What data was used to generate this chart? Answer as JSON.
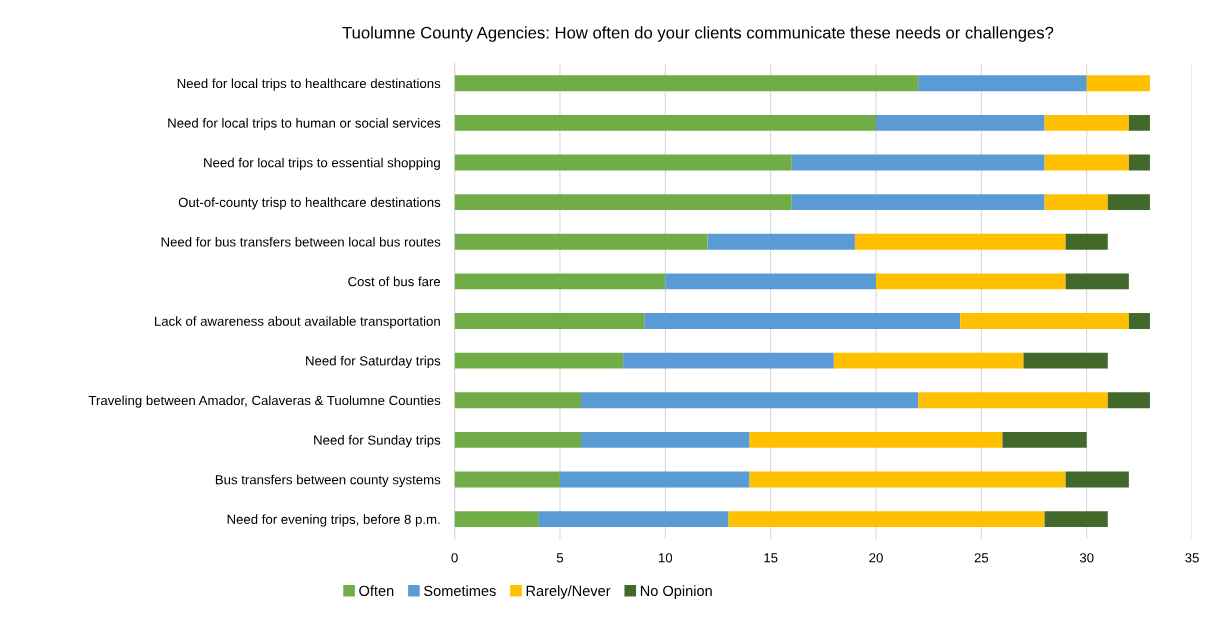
{
  "chart_data": {
    "type": "bar",
    "orientation": "horizontal",
    "stacked": true,
    "title": "Tuolumne County Agencies: How often do your clients communicate these needs or challenges?",
    "categories": [
      "Need for local trips to healthcare destinations",
      "Need for local trips to human or social services",
      "Need for local trips to essential shopping",
      "Out-of-county trisp to healthcare destinations",
      "Need for bus transfers between local bus routes",
      "Cost of bus fare",
      "Lack of awareness about available transportation",
      "Need for Saturday trips",
      "Traveling between Amador, Calaveras & Tuolumne Counties",
      "Need for Sunday trips",
      "Bus transfers between county systems",
      "Need for evening trips, before 8 p.m."
    ],
    "series": [
      {
        "name": "Often",
        "color": "#70ad47",
        "values": [
          22,
          20,
          16,
          16,
          12,
          10,
          9,
          8,
          6,
          6,
          5,
          4
        ]
      },
      {
        "name": "Sometimes",
        "color": "#5b9bd5",
        "values": [
          8,
          8,
          12,
          12,
          7,
          10,
          15,
          10,
          16,
          8,
          9,
          9
        ]
      },
      {
        "name": "Rarely/Never",
        "color": "#ffc000",
        "values": [
          3,
          4,
          4,
          3,
          10,
          9,
          8,
          9,
          9,
          12,
          15,
          15
        ]
      },
      {
        "name": "No Opinion",
        "color": "#43682b",
        "values": [
          0,
          1,
          1,
          2,
          2,
          3,
          1,
          4,
          2,
          4,
          3,
          3
        ]
      }
    ],
    "xlim": [
      0,
      35
    ],
    "xticks": [
      0,
      5,
      10,
      15,
      20,
      25,
      30,
      35
    ],
    "grid": "x",
    "legend": "bottom"
  }
}
